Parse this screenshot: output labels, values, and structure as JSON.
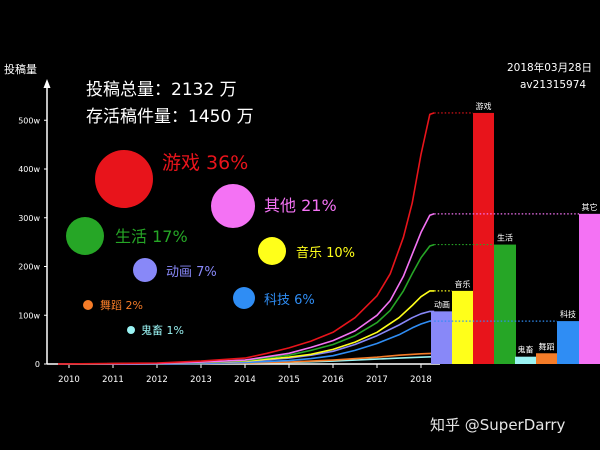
{
  "chart_data": {
    "type": "line",
    "ylabel": "投稿量",
    "ylim": [
      0,
      550
    ],
    "y_ticks": [
      0,
      100,
      200,
      300,
      400,
      500
    ],
    "y_tick_labels": [
      "0",
      "100w",
      "200w",
      "300w",
      "400w",
      "500w"
    ],
    "x_tick_labels": [
      "2010",
      "2011",
      "2012",
      "2013",
      "2014",
      "2015",
      "2016",
      "2017",
      "2018"
    ],
    "x_range": [
      2009.75,
      2018.3
    ],
    "grid": false,
    "series": [
      {
        "name": "游戏",
        "color": "#e8141b",
        "points": [
          [
            2009.75,
            0
          ],
          [
            2012,
            2
          ],
          [
            2013,
            6
          ],
          [
            2014,
            12
          ],
          [
            2014.5,
            22
          ],
          [
            2015,
            33
          ],
          [
            2015.5,
            47
          ],
          [
            2016,
            65
          ],
          [
            2016.5,
            95
          ],
          [
            2017,
            140
          ],
          [
            2017.3,
            185
          ],
          [
            2017.6,
            260
          ],
          [
            2017.8,
            330
          ],
          [
            2018,
            430
          ],
          [
            2018.2,
            512
          ],
          [
            2018.3,
            515
          ]
        ]
      },
      {
        "name": "其他",
        "color": "#f472f4",
        "points": [
          [
            2009.75,
            0
          ],
          [
            2012,
            1
          ],
          [
            2013,
            4
          ],
          [
            2014,
            8
          ],
          [
            2015,
            22
          ],
          [
            2015.5,
            34
          ],
          [
            2016,
            48
          ],
          [
            2016.5,
            68
          ],
          [
            2017,
            100
          ],
          [
            2017.3,
            130
          ],
          [
            2017.6,
            180
          ],
          [
            2017.8,
            225
          ],
          [
            2018,
            270
          ],
          [
            2018.2,
            305
          ],
          [
            2018.3,
            308
          ]
        ]
      },
      {
        "name": "生活",
        "color": "#26a626",
        "points": [
          [
            2009.75,
            0
          ],
          [
            2012,
            1
          ],
          [
            2013,
            3
          ],
          [
            2014,
            7
          ],
          [
            2015,
            18
          ],
          [
            2015.5,
            28
          ],
          [
            2016,
            40
          ],
          [
            2016.5,
            58
          ],
          [
            2017,
            85
          ],
          [
            2017.3,
            110
          ],
          [
            2017.6,
            150
          ],
          [
            2017.8,
            185
          ],
          [
            2018,
            218
          ],
          [
            2018.2,
            242
          ],
          [
            2018.3,
            245
          ]
        ]
      },
      {
        "name": "音乐",
        "color": "#ffff1a",
        "points": [
          [
            2009.75,
            0
          ],
          [
            2012,
            1
          ],
          [
            2013,
            3
          ],
          [
            2014,
            6
          ],
          [
            2015,
            14
          ],
          [
            2015.5,
            20
          ],
          [
            2016,
            30
          ],
          [
            2016.5,
            45
          ],
          [
            2017,
            65
          ],
          [
            2017.5,
            95
          ],
          [
            2017.8,
            120
          ],
          [
            2018,
            138
          ],
          [
            2018.2,
            150
          ],
          [
            2018.3,
            150
          ]
        ]
      },
      {
        "name": "动画",
        "color": "#8888f8",
        "points": [
          [
            2009.75,
            0
          ],
          [
            2012,
            1
          ],
          [
            2013,
            2
          ],
          [
            2014,
            5
          ],
          [
            2015,
            12
          ],
          [
            2015.5,
            18
          ],
          [
            2016,
            26
          ],
          [
            2016.5,
            40
          ],
          [
            2017,
            58
          ],
          [
            2017.5,
            80
          ],
          [
            2017.8,
            95
          ],
          [
            2018,
            103
          ],
          [
            2018.2,
            108
          ],
          [
            2018.3,
            108
          ]
        ]
      },
      {
        "name": "科技",
        "color": "#2f8df4",
        "points": [
          [
            2009.75,
            0
          ],
          [
            2012,
            0
          ],
          [
            2013,
            1
          ],
          [
            2014,
            3
          ],
          [
            2015,
            7
          ],
          [
            2015.5,
            11
          ],
          [
            2016,
            17
          ],
          [
            2016.5,
            28
          ],
          [
            2017,
            42
          ],
          [
            2017.5,
            60
          ],
          [
            2017.8,
            74
          ],
          [
            2018,
            82
          ],
          [
            2018.2,
            88
          ],
          [
            2018.3,
            88
          ]
        ]
      },
      {
        "name": "舞蹈",
        "color": "#f57c28",
        "points": [
          [
            2009.75,
            0
          ],
          [
            2013,
            1
          ],
          [
            2014,
            2
          ],
          [
            2015,
            4
          ],
          [
            2016,
            8
          ],
          [
            2017,
            14
          ],
          [
            2017.5,
            18
          ],
          [
            2018,
            21
          ],
          [
            2018.3,
            22
          ]
        ]
      },
      {
        "name": "鬼畜",
        "color": "#9af3f3",
        "points": [
          [
            2009.75,
            0
          ],
          [
            2013,
            1
          ],
          [
            2014,
            2
          ],
          [
            2015,
            3
          ],
          [
            2016,
            6
          ],
          [
            2017,
            10
          ],
          [
            2017.5,
            12
          ],
          [
            2018,
            14
          ],
          [
            2018.3,
            15
          ]
        ]
      }
    ],
    "bars": [
      {
        "label": "动画",
        "value": 108,
        "color": "#8888f8",
        "dotted": false
      },
      {
        "label": "音乐",
        "value": 150,
        "color": "#ffff1a",
        "dotted": true
      },
      {
        "label": "游戏",
        "value": 515,
        "color": "#e8141b",
        "dotted": true
      },
      {
        "label": "生活",
        "value": 245,
        "color": "#26a626",
        "dotted": true
      },
      {
        "label": "鬼畜",
        "value": 15,
        "color": "#9af3f3",
        "dotted": false
      },
      {
        "label": "舞蹈",
        "value": 22,
        "color": "#f57c28",
        "dotted": false
      },
      {
        "label": "科技",
        "value": 88,
        "color": "#2f8df4",
        "dotted": true
      },
      {
        "label": "其它",
        "value": 308,
        "color": "#f472f4",
        "dotted": true
      }
    ],
    "bubbles": [
      {
        "name": "游戏",
        "percent": "36%",
        "label": "游戏 36%",
        "color": "#e8141b",
        "label_color": "#e8141b"
      },
      {
        "name": "其他",
        "percent": "21%",
        "label": "其他 21%",
        "color": "#f472f4",
        "label_color": "#f472f4"
      },
      {
        "name": "生活",
        "percent": "17%",
        "label": "生活 17%",
        "color": "#26a626",
        "label_color": "#26a626"
      },
      {
        "name": "音乐",
        "percent": "10%",
        "label": "音乐 10%",
        "color": "#ffff1a",
        "label_color": "#ffff1a"
      },
      {
        "name": "动画",
        "percent": "7%",
        "label": "动画 7%",
        "color": "#8888f8",
        "label_color": "#8888f8"
      },
      {
        "name": "科技",
        "percent": "6%",
        "label": "科技 6%",
        "color": "#2f8df4",
        "label_color": "#2f8df4"
      },
      {
        "name": "舞蹈",
        "percent": "2%",
        "label": "舞蹈 2%",
        "color": "#f57c28",
        "label_color": "#f57c28"
      },
      {
        "name": "鬼畜",
        "percent": "1%",
        "label": "鬼畜 1%",
        "color": "#9af3f3",
        "label_color": "#9af3f3"
      }
    ],
    "annotations": {
      "total_line": "投稿总量：2132 万",
      "alive_line": "存活稿件量：1450 万",
      "date": "2018年03月28日",
      "av": "av21315974",
      "watermark": "知乎 @SuperDarry"
    }
  }
}
